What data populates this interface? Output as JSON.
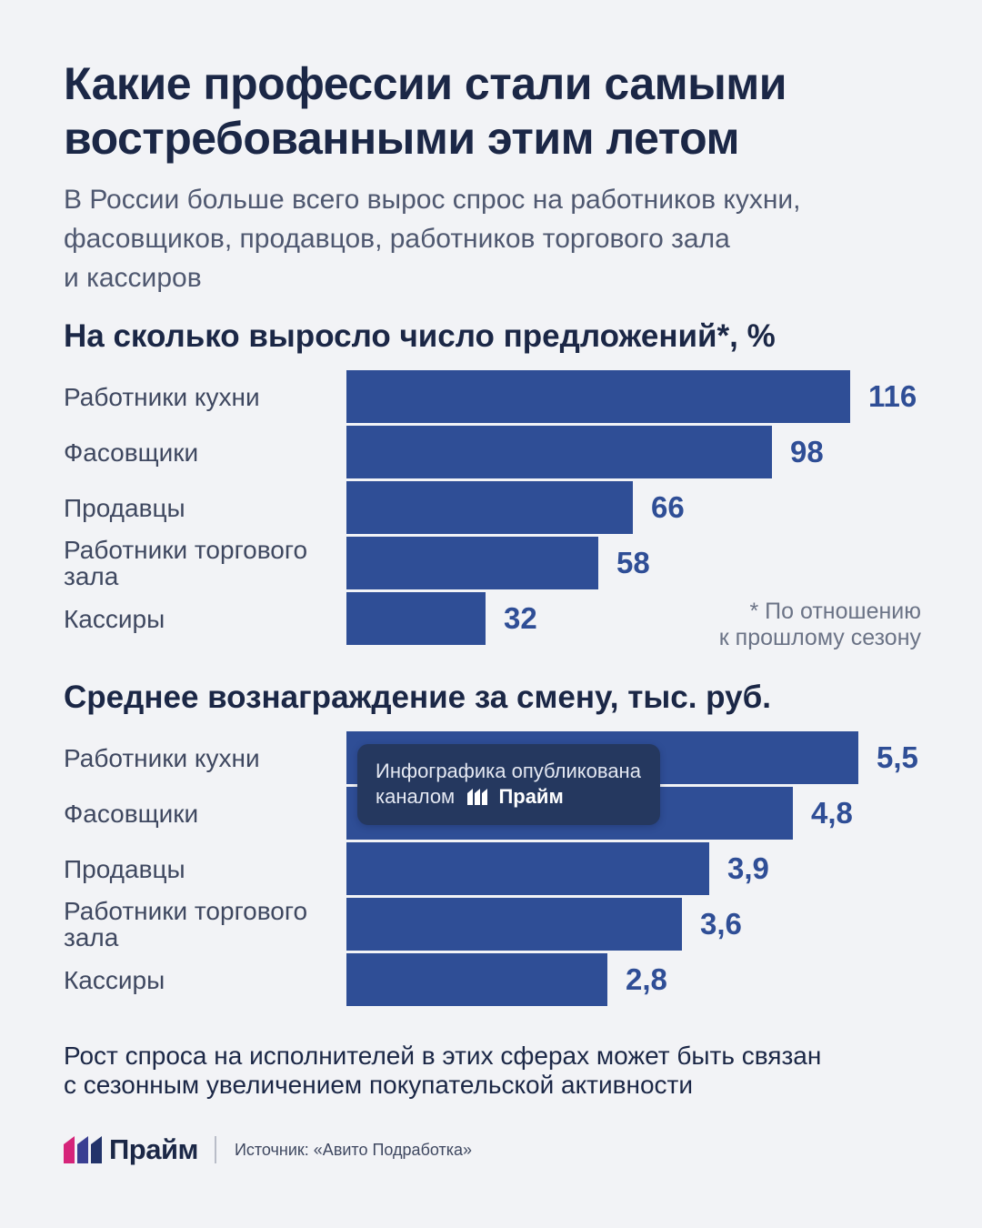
{
  "header": {
    "title_line1": "Какие профессии стали самыми",
    "title_line2": "востребованными этим летом",
    "subtitle_line1": "В России больше всего вырос спрос на работников кухни,",
    "subtitle_line2": "фасовщиков, продавцов, работников торгового зала",
    "subtitle_line3": "и кассиров"
  },
  "chart_data": [
    {
      "type": "bar",
      "orientation": "horizontal",
      "title": "На сколько выросло число предложений*, %",
      "categories": [
        "Работники кухни",
        "Фасовщики",
        "Продавцы",
        "Работники торгового зала",
        "Кассиры"
      ],
      "category_lines": [
        [
          "Работники кухни"
        ],
        [
          "Фасовщики"
        ],
        [
          "Продавцы"
        ],
        [
          "Работники торгового",
          "зала"
        ],
        [
          "Кассиры"
        ]
      ],
      "values": [
        116,
        98,
        66,
        58,
        32
      ],
      "value_labels": [
        "116",
        "98",
        "66",
        "58",
        "32"
      ],
      "xlim": [
        0,
        116
      ],
      "grid": false,
      "color": "#2f4e96",
      "footnote_line1": "* По отношению",
      "footnote_line2": "к прошлому сезону"
    },
    {
      "type": "bar",
      "orientation": "horizontal",
      "title": "Среднее вознаграждение за смену, тыс. руб.",
      "categories": [
        "Работники кухни",
        "Фасовщики",
        "Продавцы",
        "Работники торгового зала",
        "Кассиры"
      ],
      "category_lines": [
        [
          "Работники кухни"
        ],
        [
          "Фасовщики"
        ],
        [
          "Продавцы"
        ],
        [
          "Работники торгового",
          "зала"
        ],
        [
          "Кассиры"
        ]
      ],
      "values": [
        5.5,
        4.8,
        3.9,
        3.6,
        2.8
      ],
      "value_labels": [
        "5,5",
        "4,8",
        "3,9",
        "3,6",
        "2,8"
      ],
      "xlim": [
        0,
        5.5
      ],
      "grid": false,
      "color": "#2f4e96"
    }
  ],
  "overlay": {
    "line1": "Инфографика опубликована",
    "line2_prefix": "каналом",
    "brand": "Прайм"
  },
  "conclusion": {
    "line1": "Рост спроса на исполнителей в этих сферах может быть связан",
    "line2": "с сезонным увеличением покупательской активности"
  },
  "footer": {
    "brand": "Прайм",
    "source": "Источник: «Авито Подработка»"
  },
  "colors": {
    "bar": "#2f4e96",
    "text_dark": "#1b2746",
    "background": "#f2f3f6",
    "logo_magenta": "#d6247a",
    "logo_navy": "#22336a"
  }
}
